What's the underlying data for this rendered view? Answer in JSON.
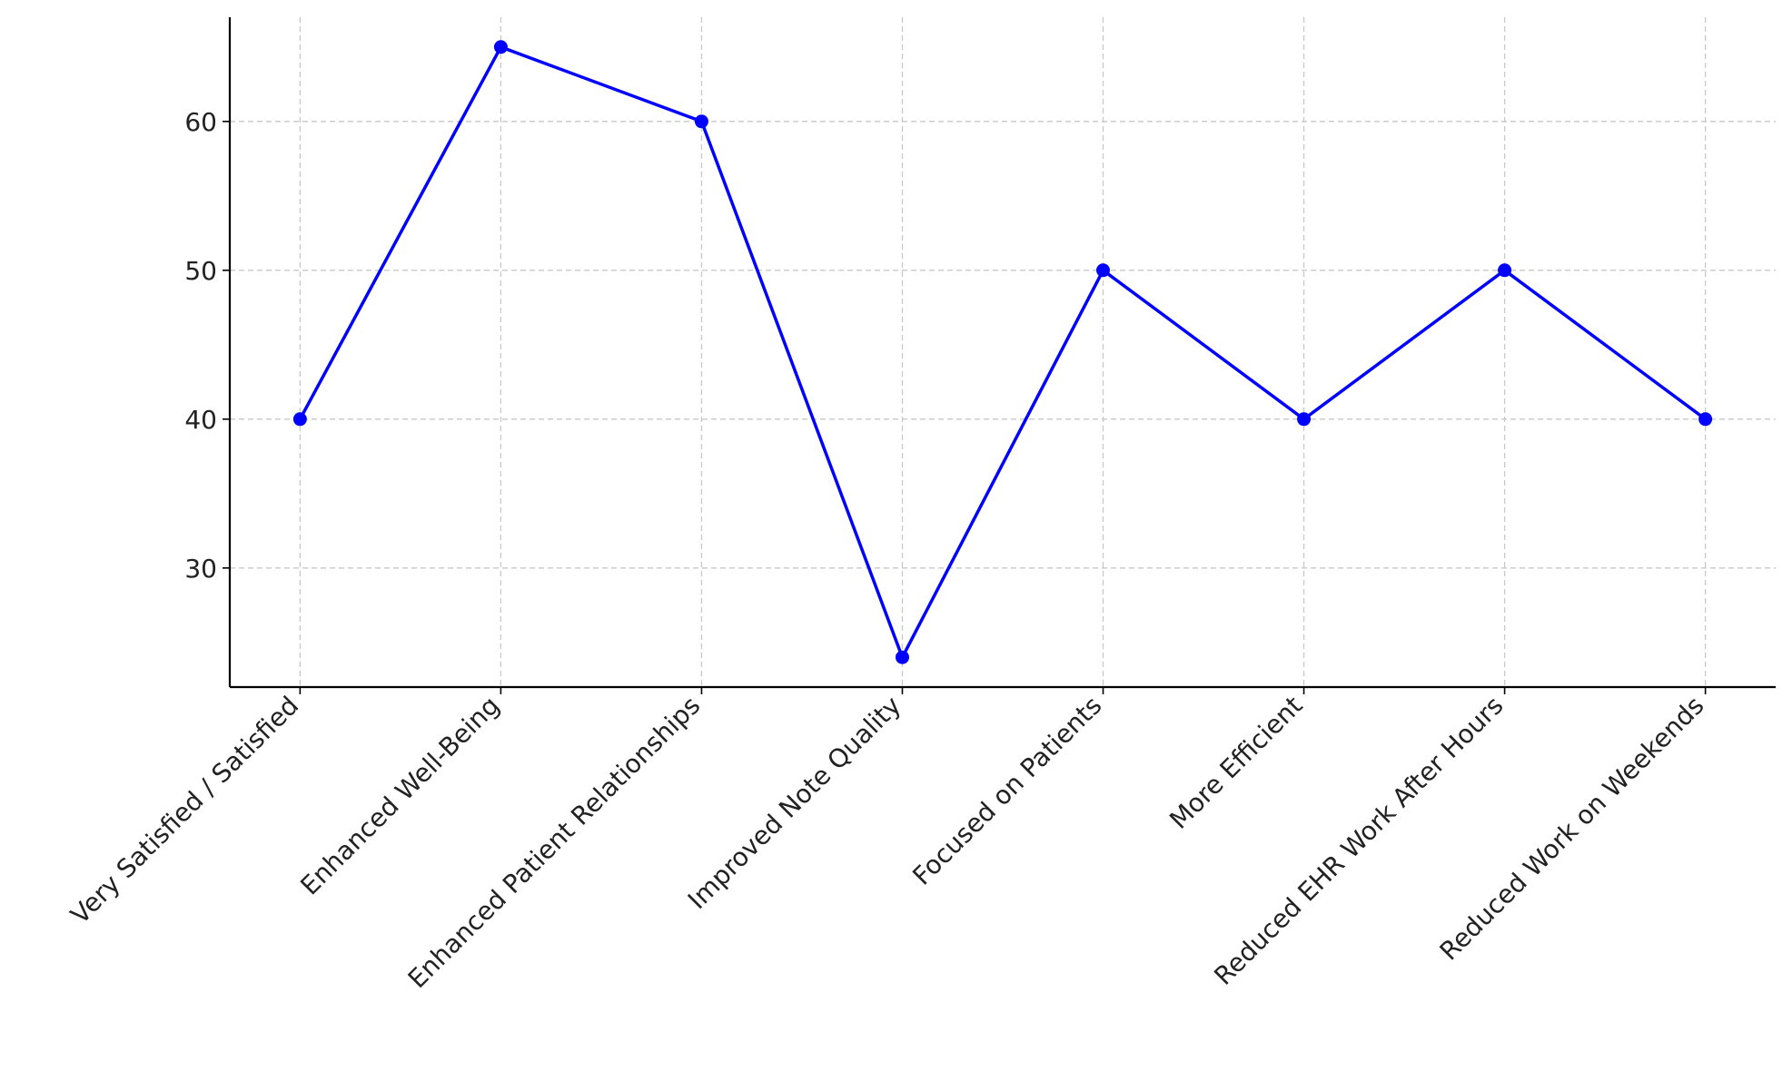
{
  "chart_data": {
    "type": "line",
    "categories": [
      "Very Satisfied / Satisfied",
      "Enhanced Well-Being",
      "Enhanced Patient Relationships",
      "Improved Note Quality",
      "Focused on Patients",
      "More Efficient",
      "Reduced EHR Work After Hours",
      "Reduced Work on Weekends"
    ],
    "values": [
      40,
      65,
      60,
      24,
      50,
      40,
      50,
      40
    ],
    "color": "#0000ff",
    "ylim": [
      22,
      67
    ],
    "yticks": [
      30,
      40,
      50,
      60
    ],
    "grid": true
  }
}
